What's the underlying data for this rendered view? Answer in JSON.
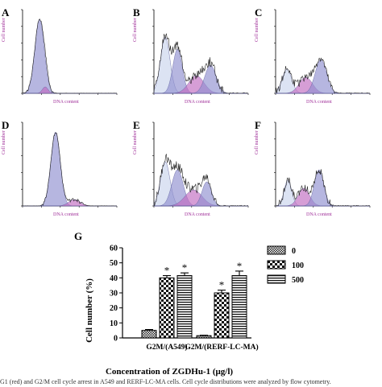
{
  "panels": [
    {
      "letter": "A",
      "ylabel": "Cell number",
      "xlabel": "DNA content"
    },
    {
      "letter": "B",
      "ylabel": "Cell number",
      "xlabel": "DNA content"
    },
    {
      "letter": "C",
      "ylabel": "Cell number",
      "xlabel": "DNA content"
    },
    {
      "letter": "D",
      "ylabel": "Cell number",
      "xlabel": "DNA content"
    },
    {
      "letter": "E",
      "ylabel": "Cell number",
      "xlabel": "DNA content"
    },
    {
      "letter": "F",
      "ylabel": "Cell number",
      "xlabel": "DNA content"
    }
  ],
  "chart_data": {
    "type": "bar",
    "panel_letter": "G",
    "categories": [
      "G2M/(A549)",
      "G2M/(RERF-LC-MA)"
    ],
    "series": [
      {
        "name": "0",
        "values": [
          5,
          1.5
        ],
        "errors": [
          0.6,
          0.3
        ],
        "pattern": "checker-fine"
      },
      {
        "name": "100",
        "values": [
          40,
          30
        ],
        "errors": [
          1.5,
          1.8
        ],
        "pattern": "checker-coarse"
      },
      {
        "name": "500",
        "values": [
          41.5,
          41.5
        ],
        "errors": [
          1.8,
          3
        ],
        "pattern": "hstripe"
      }
    ],
    "significance": [
      [
        false,
        true,
        true
      ],
      [
        false,
        true,
        true
      ]
    ],
    "significance_mark": "*",
    "ylabel": "Cell number (%)",
    "xlabel": "Concentration of ZGDHu-1 (μg/l)",
    "ylim": [
      0,
      60
    ],
    "yticks": [
      0,
      10,
      20,
      30,
      40,
      50,
      60
    ],
    "legend_placement": "top-right"
  },
  "caption": "G1 (red) and G2/M cell cycle arrest in A549 and RERF-LC-MA cells. Cell cycle distributions were analyzed by flow cytometry."
}
